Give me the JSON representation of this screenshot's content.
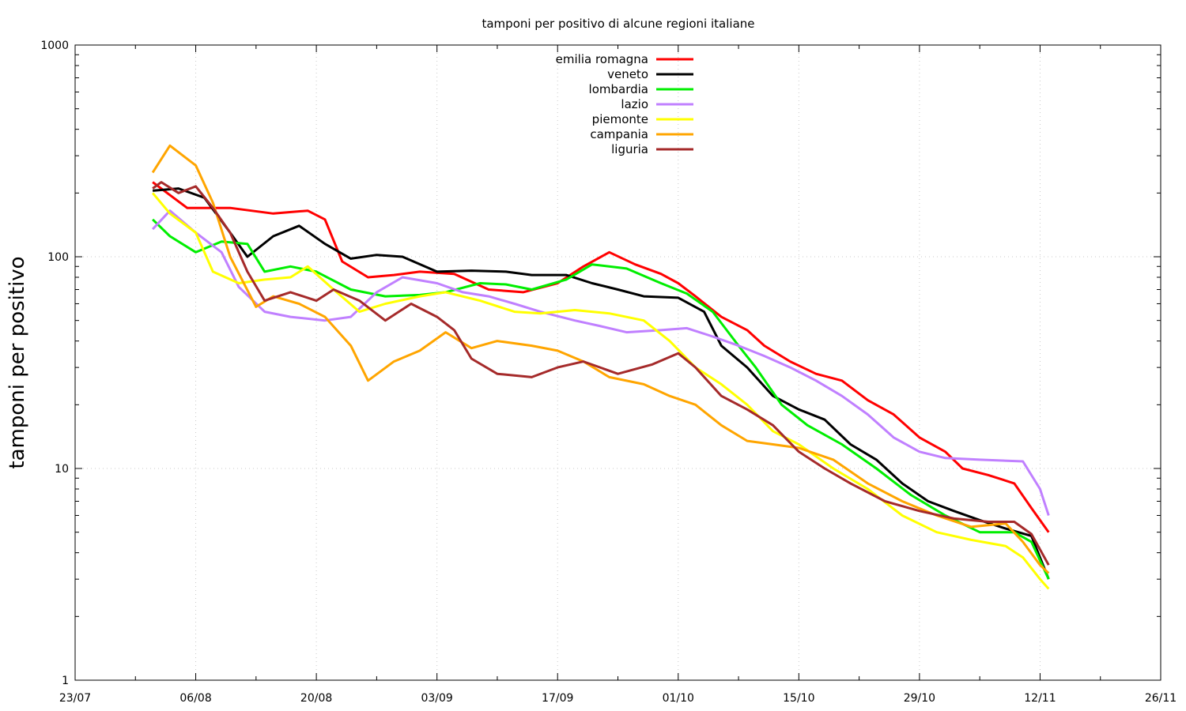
{
  "chart_data": {
    "type": "line",
    "title": "tamponi per positivo di alcune regioni italiane",
    "xlabel": "",
    "ylabel": "tamponi per positivo",
    "yscale": "log",
    "ylim": [
      1,
      1000
    ],
    "y_ticks": [
      "1",
      "10",
      "100",
      "1000"
    ],
    "xlim": [
      "2020-07-23",
      "2020-11-26"
    ],
    "x_ticks": [
      "23/07",
      "06/08",
      "20/08",
      "03/09",
      "17/09",
      "01/10",
      "15/10",
      "29/10",
      "12/11",
      "26/11"
    ],
    "grid": true,
    "legend_position": "top-center",
    "series": [
      {
        "name": "emilia romagna",
        "color": "#ff0000",
        "x": [
          "2020-08-01",
          "2020-08-05",
          "2020-08-10",
          "2020-08-15",
          "2020-08-19",
          "2020-08-21",
          "2020-08-23",
          "2020-08-26",
          "2020-08-29",
          "2020-09-01",
          "2020-09-05",
          "2020-09-09",
          "2020-09-13",
          "2020-09-17",
          "2020-09-20",
          "2020-09-23",
          "2020-09-26",
          "2020-09-29",
          "2020-10-01",
          "2020-10-03",
          "2020-10-06",
          "2020-10-09",
          "2020-10-11",
          "2020-10-14",
          "2020-10-17",
          "2020-10-20",
          "2020-10-23",
          "2020-10-26",
          "2020-10-29",
          "2020-11-01",
          "2020-11-03",
          "2020-11-06",
          "2020-11-09",
          "2020-11-11",
          "2020-11-13"
        ],
        "y": [
          225,
          170,
          170,
          160,
          165,
          150,
          95,
          80,
          82,
          85,
          83,
          70,
          68,
          75,
          90,
          105,
          92,
          83,
          75,
          65,
          52,
          45,
          38,
          32,
          28,
          26,
          21,
          18,
          14,
          12,
          10,
          9.3,
          8.5,
          6.5,
          5
        ]
      },
      {
        "name": "veneto",
        "color": "#000000",
        "x": [
          "2020-08-01",
          "2020-08-04",
          "2020-08-07",
          "2020-08-10",
          "2020-08-12",
          "2020-08-15",
          "2020-08-18",
          "2020-08-21",
          "2020-08-24",
          "2020-08-27",
          "2020-08-30",
          "2020-09-03",
          "2020-09-07",
          "2020-09-11",
          "2020-09-14",
          "2020-09-18",
          "2020-09-21",
          "2020-09-24",
          "2020-09-27",
          "2020-10-01",
          "2020-10-04",
          "2020-10-06",
          "2020-10-09",
          "2020-10-12",
          "2020-10-15",
          "2020-10-18",
          "2020-10-21",
          "2020-10-24",
          "2020-10-27",
          "2020-10-30",
          "2020-11-02",
          "2020-11-05",
          "2020-11-08",
          "2020-11-11",
          "2020-11-13"
        ],
        "y": [
          205,
          210,
          190,
          130,
          100,
          125,
          140,
          115,
          98,
          102,
          100,
          85,
          86,
          85,
          82,
          82,
          75,
          70,
          65,
          64,
          55,
          38,
          30,
          22,
          19,
          17,
          13,
          11,
          8.5,
          7,
          6.3,
          5.7,
          5.2,
          4.8,
          3
        ]
      },
      {
        "name": "lombardia",
        "color": "#00ee00",
        "x": [
          "2020-08-01",
          "2020-08-03",
          "2020-08-06",
          "2020-08-09",
          "2020-08-12",
          "2020-08-14",
          "2020-08-17",
          "2020-08-20",
          "2020-08-24",
          "2020-08-28",
          "2020-09-01",
          "2020-09-04",
          "2020-09-08",
          "2020-09-11",
          "2020-09-14",
          "2020-09-18",
          "2020-09-21",
          "2020-09-25",
          "2020-09-29",
          "2020-10-02",
          "2020-10-05",
          "2020-10-08",
          "2020-10-10",
          "2020-10-13",
          "2020-10-16",
          "2020-10-20",
          "2020-10-24",
          "2020-10-28",
          "2020-11-01",
          "2020-11-05",
          "2020-11-09",
          "2020-11-11",
          "2020-11-13"
        ],
        "y": [
          150,
          125,
          105,
          118,
          115,
          85,
          90,
          85,
          70,
          65,
          66,
          68,
          75,
          74,
          70,
          78,
          92,
          88,
          75,
          67,
          55,
          38,
          30,
          20,
          16,
          13,
          10,
          7.5,
          6,
          5,
          5,
          4.5,
          3
        ]
      },
      {
        "name": "lazio",
        "color": "#c080ff",
        "x": [
          "2020-08-01",
          "2020-08-03",
          "2020-08-06",
          "2020-08-09",
          "2020-08-11",
          "2020-08-14",
          "2020-08-17",
          "2020-08-21",
          "2020-08-24",
          "2020-08-27",
          "2020-08-30",
          "2020-09-03",
          "2020-09-06",
          "2020-09-09",
          "2020-09-12",
          "2020-09-15",
          "2020-09-19",
          "2020-09-22",
          "2020-09-25",
          "2020-09-29",
          "2020-10-02",
          "2020-10-05",
          "2020-10-08",
          "2020-10-11",
          "2020-10-14",
          "2020-10-17",
          "2020-10-20",
          "2020-10-23",
          "2020-10-26",
          "2020-10-29",
          "2020-11-01",
          "2020-11-05",
          "2020-11-10",
          "2020-11-12",
          "2020-11-13"
        ],
        "y": [
          135,
          165,
          130,
          105,
          72,
          55,
          52,
          50,
          52,
          68,
          80,
          75,
          68,
          65,
          60,
          55,
          50,
          47,
          44,
          45,
          46,
          42,
          38,
          34,
          30,
          26,
          22,
          18,
          14,
          12,
          11.2,
          11,
          10.8,
          8,
          6
        ]
      },
      {
        "name": "piemonte",
        "color": "#ffff00",
        "x": [
          "2020-08-01",
          "2020-08-03",
          "2020-08-06",
          "2020-08-08",
          "2020-08-11",
          "2020-08-14",
          "2020-08-17",
          "2020-08-19",
          "2020-08-22",
          "2020-08-25",
          "2020-08-28",
          "2020-09-01",
          "2020-09-04",
          "2020-09-08",
          "2020-09-12",
          "2020-09-15",
          "2020-09-19",
          "2020-09-23",
          "2020-09-27",
          "2020-09-30",
          "2020-10-03",
          "2020-10-06",
          "2020-10-09",
          "2020-10-12",
          "2020-10-15",
          "2020-10-19",
          "2020-10-23",
          "2020-10-27",
          "2020-10-31",
          "2020-11-04",
          "2020-11-08",
          "2020-11-10",
          "2020-11-12",
          "2020-11-13"
        ],
        "y": [
          200,
          160,
          130,
          85,
          75,
          78,
          80,
          90,
          70,
          55,
          60,
          65,
          68,
          62,
          55,
          54,
          56,
          54,
          50,
          40,
          30,
          25,
          20,
          15,
          13,
          10,
          8,
          6,
          5,
          4.6,
          4.3,
          3.8,
          3,
          2.7
        ]
      },
      {
        "name": "campania",
        "color": "#ffa500",
        "x": [
          "2020-08-01",
          "2020-08-03",
          "2020-08-06",
          "2020-08-08",
          "2020-08-10",
          "2020-08-13",
          "2020-08-15",
          "2020-08-18",
          "2020-08-21",
          "2020-08-24",
          "2020-08-26",
          "2020-08-29",
          "2020-09-01",
          "2020-09-04",
          "2020-09-07",
          "2020-09-10",
          "2020-09-14",
          "2020-09-17",
          "2020-09-20",
          "2020-09-23",
          "2020-09-27",
          "2020-09-30",
          "2020-10-03",
          "2020-10-06",
          "2020-10-09",
          "2020-10-12",
          "2020-10-15",
          "2020-10-19",
          "2020-10-23",
          "2020-10-27",
          "2020-10-31",
          "2020-11-04",
          "2020-11-08",
          "2020-11-10",
          "2020-11-12",
          "2020-11-13"
        ],
        "y": [
          250,
          335,
          270,
          180,
          100,
          58,
          65,
          60,
          52,
          38,
          26,
          32,
          36,
          44,
          37,
          40,
          38,
          36,
          32,
          27,
          25,
          22,
          20,
          16,
          13.5,
          13,
          12.5,
          11,
          8.5,
          7,
          6,
          5.3,
          5.5,
          4.5,
          3.5,
          3.2
        ]
      },
      {
        "name": "liguria",
        "color": "#a52a2a",
        "x": [
          "2020-08-01",
          "2020-08-02",
          "2020-08-04",
          "2020-08-06",
          "2020-08-08",
          "2020-08-10",
          "2020-08-12",
          "2020-08-14",
          "2020-08-17",
          "2020-08-20",
          "2020-08-22",
          "2020-08-25",
          "2020-08-28",
          "2020-08-31",
          "2020-09-03",
          "2020-09-05",
          "2020-09-07",
          "2020-09-10",
          "2020-09-14",
          "2020-09-17",
          "2020-09-20",
          "2020-09-24",
          "2020-09-28",
          "2020-10-01",
          "2020-10-03",
          "2020-10-06",
          "2020-10-09",
          "2020-10-12",
          "2020-10-15",
          "2020-10-18",
          "2020-10-21",
          "2020-10-25",
          "2020-10-29",
          "2020-11-02",
          "2020-11-06",
          "2020-11-09",
          "2020-11-11",
          "2020-11-13"
        ],
        "y": [
          210,
          225,
          200,
          215,
          170,
          130,
          85,
          62,
          68,
          62,
          70,
          62,
          50,
          60,
          52,
          45,
          33,
          28,
          27,
          30,
          32,
          28,
          31,
          35,
          30,
          22,
          19,
          16,
          12,
          10,
          8.5,
          7,
          6.3,
          5.8,
          5.6,
          5.6,
          4.9,
          3.5
        ]
      }
    ]
  }
}
